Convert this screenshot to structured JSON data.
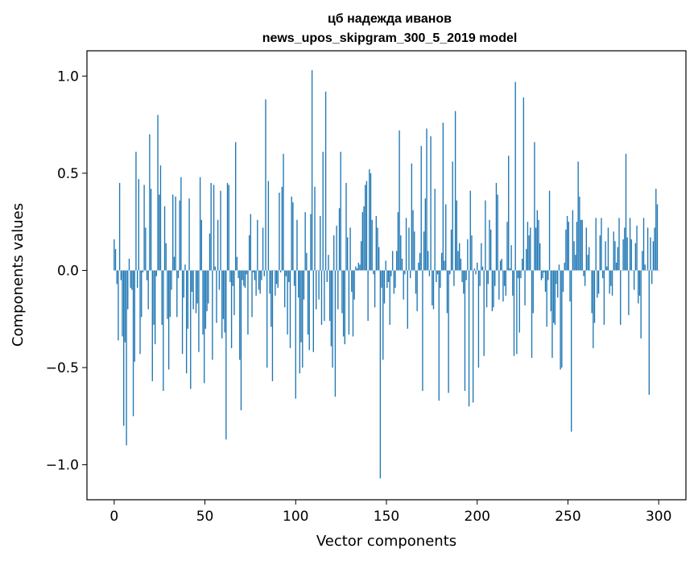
{
  "chart_data": {
    "type": "bar",
    "title_line1": "цб надежда иванов",
    "title_line2": "news_upos_skipgram_300_5_2019 model",
    "xlabel": "Vector components",
    "ylabel": "Components values",
    "xlim": [
      -15,
      315
    ],
    "ylim": [
      -1.18,
      1.13
    ],
    "xticks": [
      0,
      50,
      100,
      150,
      200,
      250,
      300
    ],
    "xtick_labels": [
      "0",
      "50",
      "100",
      "150",
      "200",
      "250",
      "300"
    ],
    "yticks": [
      -1.0,
      -0.5,
      0.0,
      0.5,
      1.0
    ],
    "ytick_labels": [
      "−1.0",
      "−0.5",
      "0.0",
      "0.5",
      "1.0"
    ],
    "bar_color": "#1f77b4",
    "grid": false,
    "values": [
      0.16,
      0.11,
      -0.07,
      -0.36,
      0.45,
      -0.05,
      -0.34,
      -0.8,
      -0.37,
      -0.9,
      -0.2,
      0.06,
      -0.09,
      -0.1,
      -0.75,
      -0.47,
      0.61,
      -0.09,
      0.47,
      -0.43,
      -0.24,
      -0.01,
      0.44,
      0.22,
      -0.05,
      -0.2,
      0.7,
      0.42,
      -0.57,
      -0.28,
      -0.38,
      -0.03,
      0.8,
      0.39,
      0.54,
      -0.28,
      -0.62,
      0.33,
      0.14,
      -0.25,
      -0.51,
      -0.24,
      -0.1,
      0.39,
      0.07,
      0.38,
      -0.24,
      -0.04,
      0.36,
      0.48,
      -0.43,
      -0.14,
      0.03,
      -0.53,
      -0.3,
      0.37,
      -0.61,
      -0.11,
      -0.2,
      0.0,
      -0.22,
      -0.17,
      -0.42,
      0.48,
      0.26,
      -0.33,
      -0.58,
      -0.3,
      -0.21,
      -0.17,
      0.19,
      0.45,
      -0.46,
      0.44,
      0.02,
      -0.27,
      0.26,
      -0.1,
      0.41,
      -0.35,
      -0.25,
      -0.32,
      -0.87,
      0.45,
      0.44,
      -0.06,
      -0.4,
      -0.08,
      -0.23,
      0.66,
      0.07,
      -0.04,
      -0.46,
      -0.72,
      -0.05,
      -0.08,
      -0.09,
      -0.02,
      -0.33,
      0.18,
      0.29,
      -0.24,
      -0.01,
      -0.05,
      -0.13,
      0.26,
      -0.1,
      -0.12,
      -0.05,
      0.22,
      -0.03,
      0.88,
      -0.5,
      0.46,
      -0.12,
      -0.29,
      -0.57,
      0.0,
      -0.13,
      -0.07,
      -0.09,
      0.4,
      -0.01,
      0.43,
      0.6,
      -0.19,
      -0.03,
      -0.33,
      -0.06,
      -0.4,
      0.38,
      0.35,
      -0.08,
      -0.66,
      0.26,
      -0.14,
      -0.53,
      -0.37,
      -0.5,
      -0.15,
      0.3,
      0.09,
      -0.33,
      -0.41,
      0.29,
      1.03,
      -0.42,
      0.43,
      -0.2,
      0.0,
      -0.15,
      0.28,
      -0.28,
      0.61,
      -0.26,
      0.92,
      -0.06,
      0.08,
      -0.26,
      -0.39,
      -0.5,
      0.18,
      -0.65,
      0.23,
      -0.2,
      0.32,
      0.61,
      -0.22,
      -0.34,
      -0.38,
      0.45,
      0.17,
      -0.33,
      0.22,
      -0.11,
      -0.34,
      -0.15,
      0.02,
      0.01,
      0.04,
      0.03,
      0.15,
      0.3,
      0.33,
      0.44,
      0.46,
      -0.26,
      0.52,
      0.5,
      0.26,
      -0.02,
      -0.19,
      0.28,
      0.22,
      0.12,
      -1.07,
      -0.09,
      -0.46,
      -0.17,
      0.05,
      -0.09,
      -0.06,
      -0.28,
      -0.03,
      0.1,
      -0.12,
      -0.09,
      0.1,
      0.3,
      0.72,
      0.18,
      0.06,
      -0.15,
      -0.02,
      0.27,
      -0.3,
      0.22,
      -0.04,
      0.55,
      0.31,
      0.2,
      -0.12,
      -0.21,
      0.04,
      0.09,
      0.64,
      -0.62,
      0.2,
      0.37,
      0.73,
      0.1,
      -0.03,
      0.69,
      -0.18,
      -0.2,
      0.42,
      -0.06,
      -0.02,
      -0.67,
      -0.09,
      0.09,
      0.76,
      0.05,
      0.34,
      -0.22,
      -0.63,
      -0.02,
      0.21,
      0.56,
      -0.08,
      0.82,
      0.36,
      0.1,
      0.14,
      0.06,
      -0.06,
      -0.12,
      -0.62,
      -0.05,
      0.16,
      -0.7,
      0.41,
      0.18,
      -0.68,
      0.01,
      -0.02,
      0.04,
      -0.5,
      -0.08,
      0.14,
      0.02,
      -0.44,
      0.36,
      -0.19,
      -0.07,
      0.26,
      0.21,
      -0.21,
      -0.19,
      -0.08,
      0.45,
      0.39,
      -0.15,
      0.05,
      0.06,
      -0.16,
      -0.08,
      -0.13,
      0.25,
      0.59,
      0.01,
      0.13,
      -0.13,
      -0.44,
      0.97,
      -0.43,
      -0.04,
      -0.32,
      -0.04,
      0.06,
      0.89,
      -0.18,
      0.11,
      0.25,
      0.18,
      0.22,
      -0.45,
      -0.22,
      0.66,
      0.22,
      0.31,
      0.26,
      0.14,
      -0.05,
      -0.04,
      -0.01,
      -0.11,
      -0.29,
      -0.05,
      0.41,
      -0.21,
      -0.45,
      -0.27,
      -0.28,
      -0.07,
      -0.14,
      0.03,
      -0.51,
      -0.5,
      -0.11,
      0.04,
      0.21,
      0.28,
      0.25,
      -0.16,
      -0.83,
      0.31,
      0.15,
      0.08,
      0.25,
      0.56,
      0.38,
      0.26,
      0.26,
      -0.03,
      -0.08,
      0.22,
      0.08,
      0.12,
      0.0,
      -0.22,
      -0.4,
      -0.27,
      0.27,
      -0.14,
      -0.12,
      0.18,
      0.27,
      -0.04,
      -0.28,
      0.15,
      0.02,
      0.22,
      -0.12,
      -0.08,
      -0.13,
      0.2,
      0.15,
      0.04,
      0.12,
      0.27,
      -0.28,
      0.0,
      0.16,
      0.22,
      0.6,
      0.17,
      -0.23,
      0.27,
      0.16,
      0.0,
      -0.1,
      0.14,
      0.23,
      -0.17,
      -0.13,
      -0.35,
      0.1,
      0.27,
      0.03,
      0.0,
      0.22,
      -0.64,
      0.17,
      -0.07,
      0.15,
      0.22,
      0.42,
      0.34,
      0.0
    ]
  }
}
